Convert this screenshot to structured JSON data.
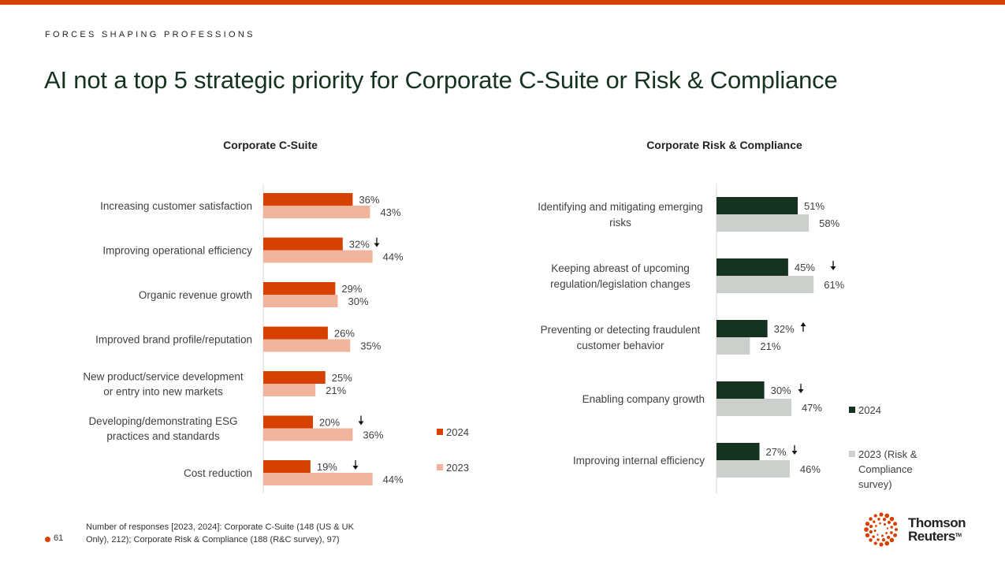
{
  "header": {
    "eyebrow": "FORCES SHAPING PROFESSIONS",
    "title": "AI not a top 5 strategic priority for Corporate C-Suite or Risk & Compliance",
    "accent_color": "#d64000",
    "title_color": "#163322"
  },
  "chart_data": [
    {
      "type": "bar",
      "orientation": "horizontal",
      "title": "Corporate C-Suite",
      "xlabel": "",
      "ylabel": "",
      "unit": "%",
      "xlim": [
        0,
        60
      ],
      "grid": false,
      "legend_position": "bottom-right",
      "categories": [
        "Increasing customer satisfaction",
        "Improving operational efficiency",
        "Organic revenue growth",
        "Improved brand profile/reputation",
        "New product/service development or entry into new markets",
        "Developing/demonstrating ESG practices and standards",
        "Cost reduction"
      ],
      "category_lines": [
        [
          "Increasing customer satisfaction"
        ],
        [
          "Improving operational efficiency"
        ],
        [
          "Organic revenue growth"
        ],
        [
          "Improved brand profile/reputation"
        ],
        [
          "New product/service development",
          "or entry into new markets"
        ],
        [
          "Developing/demonstrating ESG",
          "practices and standards"
        ],
        [
          "Cost reduction"
        ]
      ],
      "series": [
        {
          "name": "2024",
          "color": "#d64000",
          "values": [
            36,
            32,
            29,
            26,
            25,
            20,
            19
          ]
        },
        {
          "name": "2023",
          "color": "#f0b39c",
          "values": [
            43,
            44,
            30,
            35,
            21,
            36,
            44
          ]
        }
      ],
      "annotations": {
        "trend_arrows": [
          "",
          "down",
          "",
          "",
          "",
          "down",
          "down"
        ]
      }
    },
    {
      "type": "bar",
      "orientation": "horizontal",
      "title": "Corporate Risk & Compliance",
      "xlabel": "",
      "ylabel": "",
      "unit": "%",
      "xlim": [
        0,
        90
      ],
      "grid": false,
      "legend_position": "bottom-right",
      "categories": [
        "Identifying and mitigating emerging risks",
        "Keeping abreast of upcoming regulation/legislation changes",
        "Preventing or detecting fraudulent customer behavior",
        "Enabling company growth",
        "Improving internal efficiency"
      ],
      "category_lines": [
        [
          "Identifying and mitigating emerging",
          "risks"
        ],
        [
          "Keeping abreast of upcoming",
          "regulation/legislation changes"
        ],
        [
          "Preventing or detecting fraudulent",
          "customer behavior"
        ],
        [
          "Enabling company growth"
        ],
        [
          "Improving internal efficiency"
        ]
      ],
      "series": [
        {
          "name": "2024",
          "color": "#163322",
          "values": [
            51,
            45,
            32,
            30,
            27
          ]
        },
        {
          "name": "2023 (Risk & Compliance survey)",
          "legend_lines": [
            "2023 (Risk &",
            "Compliance",
            "survey)"
          ],
          "color": "#cbd0cd",
          "values": [
            58,
            61,
            21,
            47,
            46
          ]
        }
      ],
      "annotations": {
        "trend_arrows": [
          "",
          "down",
          "up",
          "down",
          "down"
        ]
      }
    }
  ],
  "footer": {
    "page_number": "61",
    "footnote": "Number of responses [2023, 2024]: Corporate C-Suite (148 (US & UK Only), 212); Corporate Risk & Compliance (188 (R&C survey), 97)",
    "logo_line1": "Thomson",
    "logo_line2": "Reuters",
    "logo_tm": "TM"
  }
}
